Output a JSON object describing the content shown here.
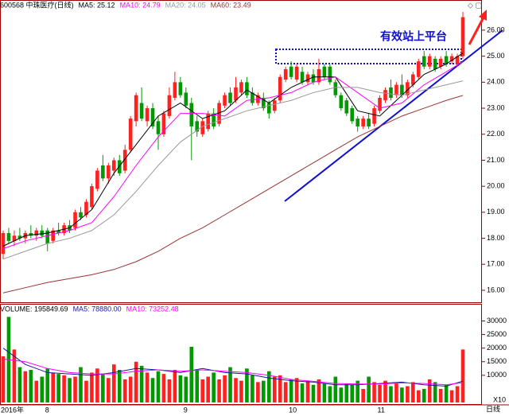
{
  "chart_data": {
    "type": "candlestick",
    "title": "600568 中珠医疗(日线)",
    "annotation": "有效站上平台",
    "period_label": "日线",
    "volume_unit_label": "X10",
    "volume_label": "VOLUME: 195849.69",
    "categories": [
      "2016年",
      null,
      null,
      null,
      null,
      null,
      null,
      null,
      "8",
      null,
      null,
      null,
      null,
      null,
      null,
      null,
      null,
      null,
      null,
      null,
      null,
      null,
      null,
      null,
      null,
      null,
      null,
      null,
      null,
      null,
      null,
      null,
      null,
      "9",
      null,
      null,
      null,
      null,
      null,
      null,
      null,
      null,
      null,
      null,
      null,
      null,
      null,
      null,
      null,
      null,
      null,
      null,
      "10",
      null,
      null,
      null,
      null,
      null,
      null,
      null,
      null,
      null,
      null,
      null,
      null,
      null,
      null,
      null,
      "11",
      null,
      null,
      null,
      null,
      null,
      null,
      null,
      null,
      null,
      null,
      null,
      null,
      null,
      null,
      null
    ],
    "up_color": "#ff2020",
    "down_color": "#009900",
    "candles": [
      [
        17.4,
        18.3,
        17.2,
        18.2
      ],
      [
        18.2,
        18.4,
        17.8,
        17.9
      ],
      [
        17.9,
        18.3,
        17.7,
        18.1
      ],
      [
        18.1,
        18.4,
        17.9,
        18.0
      ],
      [
        18.0,
        18.3,
        17.8,
        18.2
      ],
      [
        18.2,
        18.5,
        18.0,
        18.1
      ],
      [
        18.1,
        18.4,
        17.9,
        18.3
      ],
      [
        18.3,
        18.5,
        18.0,
        18.1
      ],
      [
        18.3,
        18.4,
        17.5,
        17.8
      ],
      [
        17.9,
        18.4,
        17.8,
        18.3
      ],
      [
        18.3,
        18.6,
        18.1,
        18.2
      ],
      [
        18.2,
        18.6,
        18.1,
        18.5
      ],
      [
        18.5,
        18.7,
        18.2,
        18.3
      ],
      [
        18.4,
        19.1,
        18.3,
        19.0
      ],
      [
        19.0,
        19.2,
        18.7,
        18.8
      ],
      [
        18.9,
        19.5,
        18.8,
        19.4
      ],
      [
        19.2,
        20.1,
        19.1,
        20.0
      ],
      [
        19.9,
        20.7,
        19.8,
        20.6
      ],
      [
        20.8,
        21.2,
        20.2,
        20.3
      ],
      [
        20.3,
        20.9,
        20.1,
        20.8
      ],
      [
        20.6,
        21.1,
        20.4,
        21.0
      ],
      [
        21.0,
        21.2,
        20.4,
        20.5
      ],
      [
        20.6,
        21.6,
        20.5,
        21.4
      ],
      [
        21.4,
        22.7,
        21.3,
        22.6
      ],
      [
        22.5,
        23.6,
        22.3,
        23.5
      ],
      [
        23.2,
        23.8,
        22.5,
        22.6
      ],
      [
        22.5,
        23.1,
        22.3,
        23.0
      ],
      [
        23.0,
        23.2,
        22.2,
        22.3
      ],
      [
        22.5,
        22.7,
        21.4,
        22.0
      ],
      [
        22.0,
        22.9,
        21.9,
        22.8
      ],
      [
        22.7,
        23.8,
        22.6,
        23.5
      ],
      [
        23.4,
        24.4,
        23.3,
        24.0
      ],
      [
        24.0,
        24.2,
        23.4,
        23.5
      ],
      [
        23.6,
        23.8,
        23.0,
        23.1
      ],
      [
        23.2,
        23.4,
        21.0,
        22.3
      ],
      [
        22.5,
        22.7,
        21.9,
        22.1
      ],
      [
        22.0,
        22.6,
        21.9,
        22.5
      ],
      [
        22.2,
        22.9,
        22.1,
        22.8
      ],
      [
        22.8,
        23.0,
        22.2,
        22.3
      ],
      [
        22.4,
        23.3,
        22.3,
        23.2
      ],
      [
        23.1,
        23.6,
        23.0,
        23.5
      ],
      [
        23.6,
        23.8,
        23.1,
        23.2
      ],
      [
        23.3,
        24.2,
        23.2,
        23.8
      ],
      [
        23.6,
        24.1,
        23.5,
        24.0
      ],
      [
        24.0,
        24.2,
        23.4,
        23.5
      ],
      [
        23.6,
        23.8,
        23.1,
        23.2
      ],
      [
        23.2,
        23.6,
        23.1,
        23.5
      ],
      [
        23.4,
        23.6,
        22.9,
        23.0
      ],
      [
        23.2,
        23.3,
        22.6,
        22.8
      ],
      [
        22.9,
        23.4,
        22.8,
        23.3
      ],
      [
        23.3,
        24.3,
        23.2,
        24.2
      ],
      [
        24.1,
        24.6,
        24.0,
        24.5
      ],
      [
        24.6,
        24.8,
        24.1,
        24.2
      ],
      [
        24.1,
        24.7,
        24.0,
        24.6
      ],
      [
        24.4,
        24.6,
        23.9,
        24.0
      ],
      [
        24.0,
        24.4,
        23.9,
        24.3
      ],
      [
        24.3,
        24.5,
        23.9,
        24.0
      ],
      [
        24.0,
        24.9,
        23.9,
        24.5
      ],
      [
        24.6,
        24.7,
        24.1,
        24.2
      ],
      [
        24.6,
        24.7,
        23.9,
        24.0
      ],
      [
        24.0,
        24.1,
        23.4,
        23.5
      ],
      [
        23.5,
        23.6,
        22.9,
        23.0
      ],
      [
        23.3,
        23.4,
        22.7,
        22.8
      ],
      [
        23.0,
        23.1,
        22.4,
        22.5
      ],
      [
        22.6,
        22.7,
        22.1,
        22.3
      ],
      [
        22.3,
        22.7,
        22.2,
        22.6
      ],
      [
        22.6,
        22.8,
        22.2,
        22.3
      ],
      [
        22.4,
        23.1,
        22.3,
        23.0
      ],
      [
        22.9,
        23.5,
        22.8,
        23.4
      ],
      [
        23.3,
        23.8,
        23.2,
        23.7
      ],
      [
        23.8,
        24.1,
        23.3,
        23.4
      ],
      [
        23.5,
        24.0,
        23.4,
        23.9
      ],
      [
        23.9,
        24.3,
        23.4,
        23.5
      ],
      [
        23.5,
        24.1,
        23.4,
        24.0
      ],
      [
        23.9,
        24.4,
        23.8,
        24.3
      ],
      [
        24.2,
        24.9,
        24.1,
        24.8
      ],
      [
        25.0,
        25.2,
        24.5,
        24.6
      ],
      [
        24.6,
        25.1,
        24.5,
        25.0
      ],
      [
        24.9,
        25.0,
        24.4,
        24.5
      ],
      [
        24.6,
        25.0,
        24.5,
        24.9
      ],
      [
        25.0,
        25.2,
        24.6,
        24.7
      ],
      [
        24.8,
        25.1,
        24.7,
        25.0
      ],
      [
        24.7,
        25.1,
        24.6,
        25.0
      ],
      [
        25.0,
        26.7,
        24.9,
        26.5
      ]
    ],
    "volumes": [
      17000,
      31500,
      19500,
      13000,
      11500,
      12000,
      8000,
      9500,
      12500,
      11000,
      10500,
      10000,
      9000,
      9500,
      13000,
      8000,
      11000,
      12500,
      10500,
      9000,
      14000,
      12000,
      8500,
      9500,
      15000,
      13500,
      11000,
      9000,
      11500,
      10500,
      8500,
      12000,
      10000,
      9500,
      20500,
      12000,
      8500,
      9500,
      11000,
      8500,
      10000,
      13000,
      9000,
      8000,
      12500,
      10000,
      7500,
      8000,
      11500,
      9500,
      10000,
      7500,
      8500,
      9000,
      7000,
      8000,
      6500,
      8500,
      7000,
      6000,
      9500,
      5500,
      7000,
      6500,
      8000,
      5000,
      9500,
      7500,
      6500,
      8000,
      6000,
      7000,
      5500,
      6000,
      7500,
      4500,
      5000,
      8500,
      7500,
      5000,
      6500,
      4500,
      6000,
      19500
    ],
    "ma_x": [
      0,
      4,
      8,
      12,
      16,
      20,
      24,
      28,
      32,
      36,
      40,
      44,
      48,
      52,
      56,
      60,
      64,
      68,
      72,
      76,
      80,
      83
    ],
    "ma_series": [
      {
        "label": "MA5: 25.12",
        "color": "#000000",
        "values": [
          17.7,
          18.1,
          18.2,
          18.4,
          19.1,
          20.5,
          21.6,
          22.7,
          23.2,
          22.6,
          22.9,
          23.7,
          23.2,
          23.8,
          24.2,
          24.2,
          22.9,
          22.7,
          23.5,
          24.3,
          24.7,
          25.12
        ]
      },
      {
        "label": "MA10: 24.79",
        "color": "#ff00ff",
        "values": [
          17.6,
          17.9,
          18.1,
          18.3,
          18.6,
          19.6,
          20.8,
          21.9,
          22.8,
          22.8,
          22.7,
          23.3,
          23.4,
          23.6,
          24.0,
          24.2,
          23.6,
          23.0,
          23.2,
          23.9,
          24.4,
          24.79
        ]
      },
      {
        "label": "MA20: 24.05",
        "color": "#999999",
        "values": [
          17.2,
          17.5,
          17.8,
          18.0,
          18.3,
          18.9,
          19.8,
          20.8,
          21.7,
          22.3,
          22.6,
          22.9,
          23.1,
          23.3,
          23.6,
          23.8,
          23.8,
          23.6,
          23.5,
          23.7,
          23.9,
          24.05
        ]
      },
      {
        "label": "MA60: 23.49",
        "color": "#993333",
        "values": [
          15.9,
          16.1,
          16.3,
          16.45,
          16.6,
          16.8,
          17.1,
          17.5,
          18.0,
          18.4,
          18.9,
          19.4,
          19.9,
          20.4,
          20.9,
          21.4,
          21.9,
          22.3,
          22.7,
          23.0,
          23.3,
          23.49
        ]
      }
    ],
    "volume_ma_series": [
      {
        "label": "MA5: 78880.00",
        "color": "#1a1a99",
        "values": [
          20000,
          14000,
          11000,
          10500,
          10000,
          11000,
          12500,
          12000,
          11000,
          12500,
          11000,
          10500,
          9000,
          8000,
          7500,
          6500,
          6500,
          7000,
          7500,
          6500,
          6000,
          7888
        ]
      },
      {
        "label": "MA10: 73252.48",
        "color": "#ff00ff",
        "values": [
          16000,
          15000,
          12500,
          11000,
          10500,
          10500,
          11500,
          12000,
          11500,
          12000,
          11500,
          11000,
          10000,
          8500,
          7800,
          7000,
          6800,
          6800,
          7200,
          7000,
          6500,
          7325
        ]
      }
    ],
    "ylim": [
      15.54,
      27.16
    ],
    "yticks": [
      {
        "value": 16,
        "label": "16.00"
      },
      {
        "value": 17,
        "label": "17.00"
      },
      {
        "value": 18,
        "label": "18.00"
      },
      {
        "value": 19,
        "label": "19.00"
      },
      {
        "value": 20,
        "label": "20.00"
      },
      {
        "value": 21,
        "label": "21.00"
      },
      {
        "value": 22,
        "label": "22.00"
      },
      {
        "value": 23,
        "label": "23.00"
      },
      {
        "value": 24,
        "label": "24.00"
      },
      {
        "value": 25,
        "label": "25.00"
      },
      {
        "value": 26,
        "label": "26.00"
      }
    ],
    "y2lim": [
      0,
      36000
    ],
    "y2ticks": [
      10000,
      15000,
      20000,
      25000,
      30000
    ]
  }
}
